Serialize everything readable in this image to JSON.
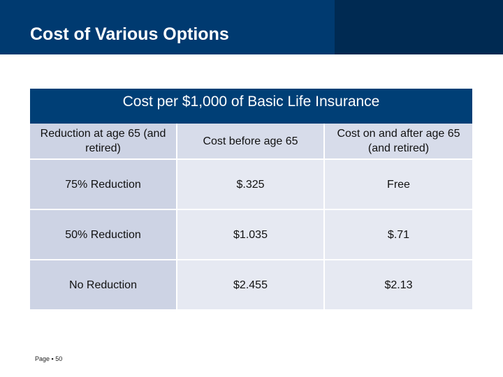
{
  "slide": {
    "title": "Cost of Various Options",
    "page_label": "Page ▪ 50"
  },
  "table": {
    "title": "Cost per $1,000 of Basic Life Insurance",
    "columns": [
      "Reduction at age 65 (and retired)",
      "Cost before age 65",
      "Cost on and after age 65 (and retired)"
    ],
    "rows": [
      [
        "75% Reduction",
        "$.325",
        "Free"
      ],
      [
        "50% Reduction",
        "$1.035",
        "$.71"
      ],
      [
        "No Reduction",
        "$2.455",
        "$2.13"
      ]
    ]
  },
  "colors": {
    "banner": "#003a70",
    "table_header": "#003f76",
    "cell_light": "#e6e9f2",
    "cell_dark": "#cdd3e4"
  }
}
